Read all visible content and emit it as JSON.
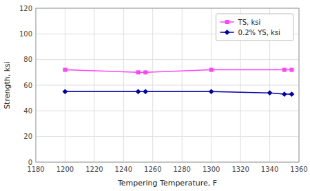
{
  "chart_data": {
    "type": "line",
    "x_label": "Tempering Temperature, F",
    "y_label": "Strength, ksi",
    "series": [
      {
        "name": "TS, ksi",
        "color": "#FF44FF",
        "marker": "square",
        "line_style": "solid",
        "x": [
          1200,
          1250,
          1255,
          1300,
          1350,
          1355
        ],
        "values": [
          72,
          70,
          70,
          72,
          72,
          72
        ]
      },
      {
        "name": "0.2% YS, ksi",
        "color": "#0000AA",
        "marker": "diamond",
        "line_style": "solid",
        "x": [
          1200,
          1250,
          1255,
          1300,
          1340,
          1350,
          1355
        ],
        "values": [
          55,
          55,
          55,
          55,
          54,
          53,
          53
        ]
      }
    ],
    "xlim": [
      1180,
      1360
    ],
    "ylim": [
      0,
      120
    ],
    "xticks": [
      1180,
      1200,
      1220,
      1240,
      1260,
      1280,
      1300,
      1320,
      1340,
      1360
    ],
    "yticks": [
      0,
      20,
      40,
      60,
      80,
      100,
      120
    ],
    "grid": true,
    "legend": "upper right"
  }
}
